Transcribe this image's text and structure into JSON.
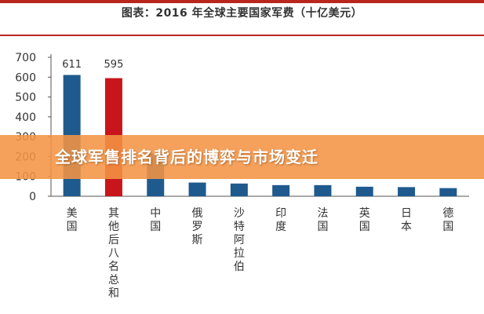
{
  "banner": {
    "text": "全球军售排名背后的博弈与市场变迁"
  },
  "colors": {
    "bar_primary": "#1e5a8e",
    "bar_highlight": "#c8151b",
    "frame": "#b8261e",
    "banner": "#f49444"
  },
  "chart_data": {
    "type": "bar",
    "title": "图表：2016 年全球主要国家军费（十亿美元）",
    "categories": [
      "美国",
      "其他后八名总和",
      "中国",
      "俄罗斯",
      "沙特阿拉伯",
      "印度",
      "法国",
      "英国",
      "日本",
      "德国"
    ],
    "values": [
      611,
      595,
      215,
      69,
      64,
      56,
      56,
      48,
      46,
      41
    ],
    "data_labels": [
      "611",
      "595",
      "",
      "",
      "",
      "",
      "",
      "",
      "",
      ""
    ],
    "highlight_index": 1,
    "ylim": [
      0,
      700
    ],
    "yticks": [
      "0",
      "100",
      "200",
      "300",
      "400",
      "500",
      "600",
      "700"
    ],
    "xlabel": "",
    "ylabel": "",
    "grid": false,
    "legend": "none"
  }
}
